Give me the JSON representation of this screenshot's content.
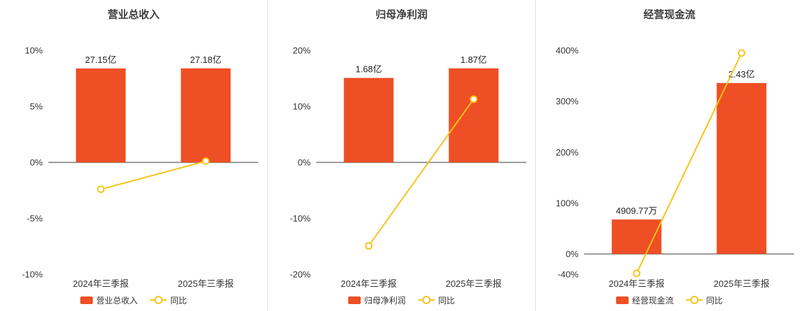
{
  "colors": {
    "bar": "#ee4f24",
    "line": "#f8c41a",
    "axis": "#7a7a7a",
    "text": "#333333",
    "divider": "#e0e0e0"
  },
  "chart_data": [
    {
      "type": "bar",
      "title": "营业总收入",
      "categories": [
        "2024年三季报",
        "2025年三季报"
      ],
      "ylim": [
        -10,
        10
      ],
      "yticks": [
        {
          "value": 10,
          "label": "10%"
        },
        {
          "value": 5,
          "label": "5%"
        },
        {
          "value": 0,
          "label": "0%"
        },
        {
          "value": -5,
          "label": "-5%"
        },
        {
          "value": -10,
          "label": "-10%"
        }
      ],
      "series": [
        {
          "type": "bar",
          "name": "营业总收入",
          "values": [
            27.15,
            27.18
          ],
          "labels": [
            "27.15亿",
            "27.18亿"
          ]
        },
        {
          "type": "line",
          "name": "同比",
          "values": [
            -2.4,
            0.11
          ]
        }
      ],
      "legend_position": "bottom",
      "grid": false
    },
    {
      "type": "bar",
      "title": "归母净利润",
      "categories": [
        "2024年三季报",
        "2025年三季报"
      ],
      "ylim": [
        -20,
        20
      ],
      "yticks": [
        {
          "value": 20,
          "label": "20%"
        },
        {
          "value": 10,
          "label": "10%"
        },
        {
          "value": 0,
          "label": "0%"
        },
        {
          "value": -10,
          "label": "-10%"
        },
        {
          "value": -20,
          "label": "-20%"
        }
      ],
      "series": [
        {
          "type": "bar",
          "name": "归母净利润",
          "values": [
            1.68,
            1.87
          ],
          "labels": [
            "1.68亿",
            "1.87亿"
          ]
        },
        {
          "type": "line",
          "name": "同比",
          "values": [
            -14.9,
            11.3
          ]
        }
      ],
      "legend_position": "bottom",
      "grid": false
    },
    {
      "type": "bar",
      "title": "经营现金流",
      "categories": [
        "2024年三季报",
        "2025年三季报"
      ],
      "ylim": [
        -40,
        400
      ],
      "yticks": [
        {
          "value": 400,
          "label": "400%"
        },
        {
          "value": 300,
          "label": "300%"
        },
        {
          "value": 200,
          "label": "200%"
        },
        {
          "value": 100,
          "label": "100%"
        },
        {
          "value": 0,
          "label": "0%"
        },
        {
          "value": -40,
          "label": "-40%"
        }
      ],
      "series": [
        {
          "type": "bar",
          "name": "经营现金流",
          "values": [
            0.490977,
            2.43
          ],
          "labels": [
            "4909.77万",
            "2.43亿"
          ]
        },
        {
          "type": "line",
          "name": "同比",
          "values": [
            -38,
            394.9
          ]
        }
      ],
      "legend_position": "bottom",
      "grid": false
    }
  ]
}
